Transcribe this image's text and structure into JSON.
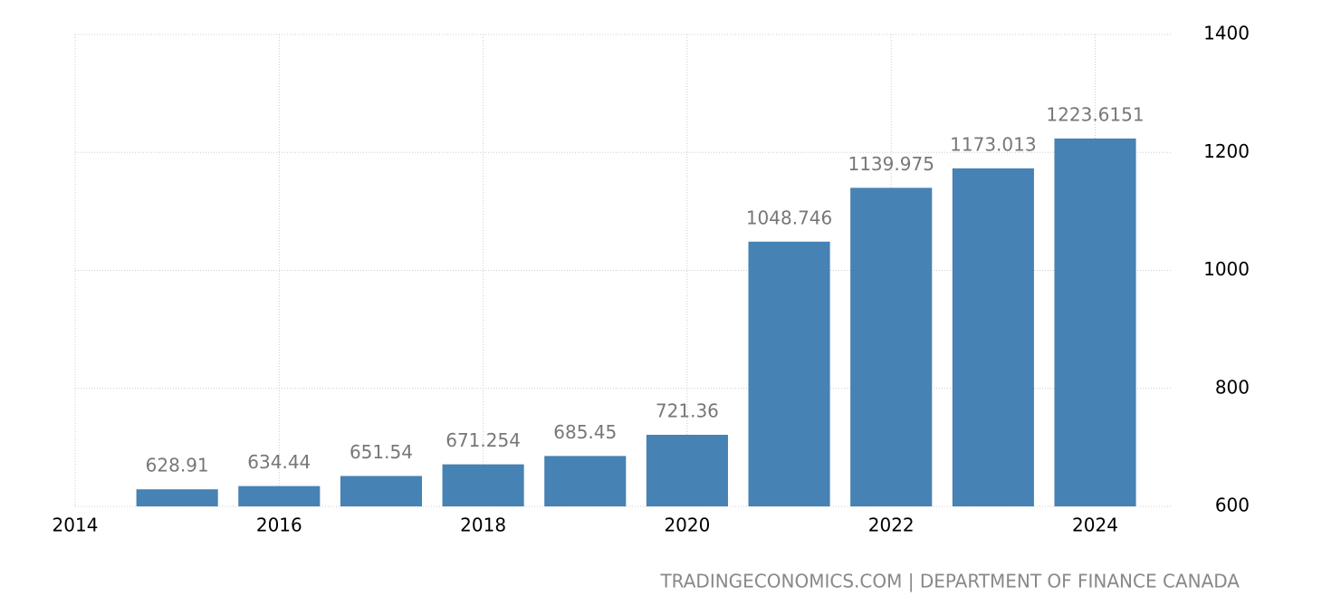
{
  "chart_data": {
    "type": "bar",
    "x": [
      2015,
      2016,
      2017,
      2018,
      2019,
      2020,
      2021,
      2022,
      2023,
      2024
    ],
    "values": [
      628.91,
      634.44,
      651.54,
      671.254,
      685.45,
      721.36,
      1048.746,
      1139.975,
      1173.013,
      1223.6151
    ],
    "color": "#4682b4",
    "xlim": [
      2014,
      2024.75
    ],
    "xticks": [
      2014,
      2016,
      2018,
      2020,
      2022,
      2024
    ],
    "ylim": [
      600,
      1400
    ],
    "yticks": [
      600,
      800,
      1000,
      1200,
      1400
    ],
    "grid": true,
    "source": "TRADINGECONOMICS.COM | DEPARTMENT OF FINANCE CANADA"
  }
}
